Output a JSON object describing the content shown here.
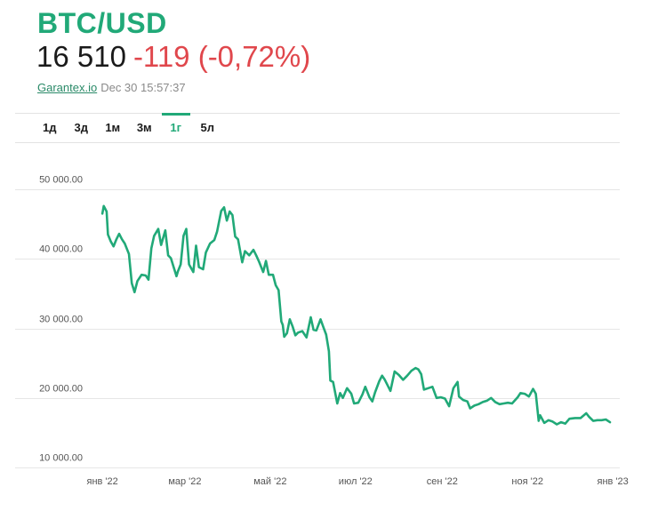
{
  "header": {
    "pair": "BTC/USD",
    "price": "16 510",
    "change": "-119 (-0,72%)",
    "source": "Garantex.io",
    "timestamp": "Dec 30 15:57:37",
    "accent_color": "#21a978",
    "negative_color": "#e0474c"
  },
  "tabs": [
    {
      "label": "1д",
      "active": false
    },
    {
      "label": "3д",
      "active": false
    },
    {
      "label": "1м",
      "active": false
    },
    {
      "label": "3м",
      "active": false
    },
    {
      "label": "1г",
      "active": true
    },
    {
      "label": "5л",
      "active": false
    }
  ],
  "chart_data": {
    "type": "line",
    "title": "",
    "xlabel": "",
    "ylabel": "",
    "ylim": [
      10000,
      50000
    ],
    "xlim": [
      "2021-12-30",
      "2023-01-06"
    ],
    "grid": "horizontal",
    "line_color": "#21a978",
    "y_ticks": [
      {
        "value": 10000,
        "label": "10 000.00"
      },
      {
        "value": 20000,
        "label": "20 000.00"
      },
      {
        "value": 30000,
        "label": "30 000.00"
      },
      {
        "value": 40000,
        "label": "40 000.00"
      },
      {
        "value": 50000,
        "label": "50 000.00"
      }
    ],
    "x_ticks": [
      {
        "date": "2022-01-01",
        "label": "янв '22"
      },
      {
        "date": "2022-03-01",
        "label": "мар '22"
      },
      {
        "date": "2022-05-01",
        "label": "май '22"
      },
      {
        "date": "2022-07-01",
        "label": "июл '22"
      },
      {
        "date": "2022-09-01",
        "label": "сен '22"
      },
      {
        "date": "2022-11-01",
        "label": "ноя '22"
      },
      {
        "date": "2023-01-01",
        "label": "янв '23"
      }
    ],
    "series": [
      {
        "values": [
          [
            "2022-01-01",
            46500
          ],
          [
            "2022-01-02",
            47600
          ],
          [
            "2022-01-04",
            46800
          ],
          [
            "2022-01-05",
            43500
          ],
          [
            "2022-01-07",
            42500
          ],
          [
            "2022-01-09",
            41800
          ],
          [
            "2022-01-11",
            42800
          ],
          [
            "2022-01-13",
            43600
          ],
          [
            "2022-01-15",
            42800
          ],
          [
            "2022-01-17",
            42200
          ],
          [
            "2022-01-20",
            40700
          ],
          [
            "2022-01-22",
            36500
          ],
          [
            "2022-01-24",
            35200
          ],
          [
            "2022-01-26",
            36800
          ],
          [
            "2022-01-29",
            37700
          ],
          [
            "2022-02-01",
            37600
          ],
          [
            "2022-02-03",
            37000
          ],
          [
            "2022-02-05",
            41500
          ],
          [
            "2022-02-07",
            43300
          ],
          [
            "2022-02-10",
            44300
          ],
          [
            "2022-02-12",
            42000
          ],
          [
            "2022-02-15",
            44100
          ],
          [
            "2022-02-17",
            40500
          ],
          [
            "2022-02-19",
            40100
          ],
          [
            "2022-02-21",
            38800
          ],
          [
            "2022-02-23",
            37500
          ],
          [
            "2022-02-24",
            38200
          ],
          [
            "2022-02-26",
            39200
          ],
          [
            "2022-02-28",
            43300
          ],
          [
            "2022-03-02",
            44300
          ],
          [
            "2022-03-04",
            39200
          ],
          [
            "2022-03-07",
            38100
          ],
          [
            "2022-03-09",
            41900
          ],
          [
            "2022-03-11",
            38800
          ],
          [
            "2022-03-14",
            38500
          ],
          [
            "2022-03-16",
            40900
          ],
          [
            "2022-03-19",
            42200
          ],
          [
            "2022-03-22",
            42700
          ],
          [
            "2022-03-24",
            43900
          ],
          [
            "2022-03-27",
            46900
          ],
          [
            "2022-03-29",
            47400
          ],
          [
            "2022-03-31",
            45500
          ],
          [
            "2022-04-02",
            46800
          ],
          [
            "2022-04-04",
            46300
          ],
          [
            "2022-04-06",
            43200
          ],
          [
            "2022-04-08",
            42800
          ],
          [
            "2022-04-11",
            39500
          ],
          [
            "2022-04-13",
            41100
          ],
          [
            "2022-04-16",
            40500
          ],
          [
            "2022-04-19",
            41300
          ],
          [
            "2022-04-21",
            40500
          ],
          [
            "2022-04-23",
            39600
          ],
          [
            "2022-04-26",
            38100
          ],
          [
            "2022-04-28",
            39700
          ],
          [
            "2022-04-30",
            37700
          ],
          [
            "2022-05-03",
            37700
          ],
          [
            "2022-05-05",
            36200
          ],
          [
            "2022-05-07",
            35500
          ],
          [
            "2022-05-09",
            31000
          ],
          [
            "2022-05-10",
            30500
          ],
          [
            "2022-05-11",
            28800
          ],
          [
            "2022-05-13",
            29300
          ],
          [
            "2022-05-15",
            31300
          ],
          [
            "2022-05-17",
            30300
          ],
          [
            "2022-05-19",
            29000
          ],
          [
            "2022-05-21",
            29400
          ],
          [
            "2022-05-24",
            29600
          ],
          [
            "2022-05-27",
            28700
          ],
          [
            "2022-05-30",
            31600
          ],
          [
            "2022-06-01",
            29800
          ],
          [
            "2022-06-03",
            29700
          ],
          [
            "2022-06-06",
            31300
          ],
          [
            "2022-06-08",
            30200
          ],
          [
            "2022-06-10",
            29100
          ],
          [
            "2022-06-12",
            26700
          ],
          [
            "2022-06-13",
            22500
          ],
          [
            "2022-06-15",
            22300
          ],
          [
            "2022-06-18",
            19200
          ],
          [
            "2022-06-20",
            20700
          ],
          [
            "2022-06-22",
            20000
          ],
          [
            "2022-06-25",
            21400
          ],
          [
            "2022-06-28",
            20600
          ],
          [
            "2022-06-30",
            19200
          ],
          [
            "2022-07-03",
            19300
          ],
          [
            "2022-07-06",
            20500
          ],
          [
            "2022-07-08",
            21600
          ],
          [
            "2022-07-11",
            20100
          ],
          [
            "2022-07-13",
            19500
          ],
          [
            "2022-07-15",
            20800
          ],
          [
            "2022-07-18",
            22400
          ],
          [
            "2022-07-20",
            23200
          ],
          [
            "2022-07-22",
            22600
          ],
          [
            "2022-07-26",
            21000
          ],
          [
            "2022-07-29",
            23800
          ],
          [
            "2022-08-01",
            23300
          ],
          [
            "2022-08-04",
            22600
          ],
          [
            "2022-08-07",
            23200
          ],
          [
            "2022-08-10",
            23900
          ],
          [
            "2022-08-13",
            24300
          ],
          [
            "2022-08-15",
            24100
          ],
          [
            "2022-08-17",
            23400
          ],
          [
            "2022-08-19",
            21200
          ],
          [
            "2022-08-22",
            21400
          ],
          [
            "2022-08-25",
            21600
          ],
          [
            "2022-08-28",
            20000
          ],
          [
            "2022-08-31",
            20100
          ],
          [
            "2022-09-03",
            19900
          ],
          [
            "2022-09-06",
            18800
          ],
          [
            "2022-09-09",
            21400
          ],
          [
            "2022-09-12",
            22300
          ],
          [
            "2022-09-13",
            20200
          ],
          [
            "2022-09-16",
            19700
          ],
          [
            "2022-09-19",
            19500
          ],
          [
            "2022-09-21",
            18500
          ],
          [
            "2022-09-24",
            18900
          ],
          [
            "2022-09-27",
            19100
          ],
          [
            "2022-09-30",
            19400
          ],
          [
            "2022-10-03",
            19600
          ],
          [
            "2022-10-06",
            20000
          ],
          [
            "2022-10-09",
            19400
          ],
          [
            "2022-10-12",
            19100
          ],
          [
            "2022-10-15",
            19200
          ],
          [
            "2022-10-18",
            19300
          ],
          [
            "2022-10-21",
            19200
          ],
          [
            "2022-10-25",
            20100
          ],
          [
            "2022-10-27",
            20700
          ],
          [
            "2022-10-30",
            20600
          ],
          [
            "2022-11-02",
            20200
          ],
          [
            "2022-11-05",
            21300
          ],
          [
            "2022-11-07",
            20600
          ],
          [
            "2022-11-09",
            16700
          ],
          [
            "2022-11-10",
            17500
          ],
          [
            "2022-11-13",
            16400
          ],
          [
            "2022-11-16",
            16800
          ],
          [
            "2022-11-19",
            16600
          ],
          [
            "2022-11-22",
            16200
          ],
          [
            "2022-11-25",
            16500
          ],
          [
            "2022-11-28",
            16300
          ],
          [
            "2022-12-01",
            17000
          ],
          [
            "2022-12-05",
            17100
          ],
          [
            "2022-12-09",
            17100
          ],
          [
            "2022-12-13",
            17800
          ],
          [
            "2022-12-15",
            17300
          ],
          [
            "2022-12-18",
            16700
          ],
          [
            "2022-12-21",
            16800
          ],
          [
            "2022-12-24",
            16800
          ],
          [
            "2022-12-27",
            16900
          ],
          [
            "2022-12-30",
            16500
          ]
        ]
      }
    ]
  }
}
